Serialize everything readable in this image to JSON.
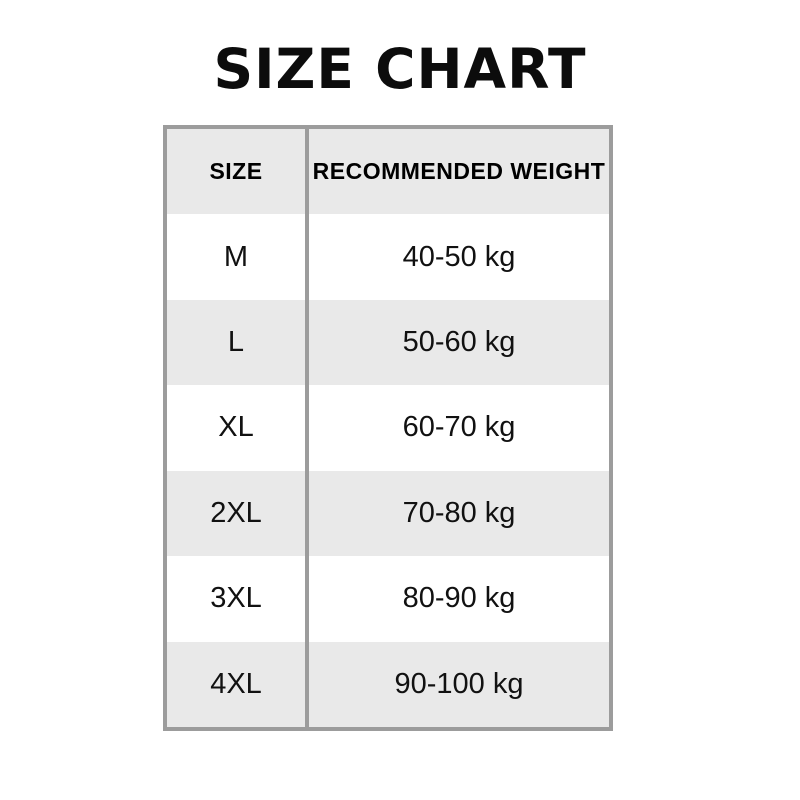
{
  "page": {
    "title": "SIZE CHART"
  },
  "table": {
    "headers": [
      "SIZE",
      "RECOMMENDED WEIGHT"
    ],
    "rows": [
      [
        "M",
        "40-50 kg"
      ],
      [
        "L",
        "50-60 kg"
      ],
      [
        "XL",
        "60-70 kg"
      ],
      [
        "2XL",
        "70-80 kg"
      ],
      [
        "3XL",
        "80-90 kg"
      ],
      [
        "4XL",
        "90-100 kg"
      ]
    ]
  },
  "colors": {
    "background": "#ffffff",
    "row_alt": "#e9e9e9",
    "border": "#9c9c9c",
    "text": "#111111"
  },
  "chart_data": {
    "type": "table",
    "title": "SIZE CHART",
    "columns": [
      "SIZE",
      "RECOMMENDED WEIGHT"
    ],
    "rows": [
      {
        "size": "M",
        "recommended_weight": "40-50 kg"
      },
      {
        "size": "L",
        "recommended_weight": "50-60 kg"
      },
      {
        "size": "XL",
        "recommended_weight": "60-70 kg"
      },
      {
        "size": "2XL",
        "recommended_weight": "70-80 kg"
      },
      {
        "size": "3XL",
        "recommended_weight": "80-90 kg"
      },
      {
        "size": "4XL",
        "recommended_weight": "90-100 kg"
      }
    ],
    "layout_hints": {
      "header_background": "#e9e9e9",
      "alternating_rows": true,
      "column_divider": true,
      "horizontal_rules": false
    }
  }
}
